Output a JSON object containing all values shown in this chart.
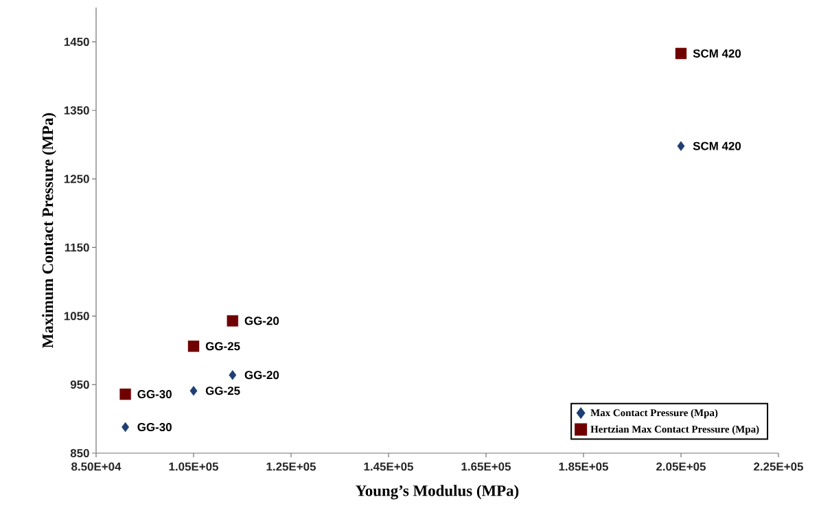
{
  "chart_data": {
    "type": "scatter",
    "xlabel": "Young’s Modulus (MPa)",
    "ylabel": "Maximum Contact Pressure  (MPa)",
    "x": [
      91000,
      105000,
      113000,
      205000
    ],
    "series": [
      {
        "name": "Max Contact Pressure (Mpa)",
        "color": "#1f3f74",
        "marker": "diamond",
        "values": [
          888,
          941,
          964,
          1298
        ]
      },
      {
        "name": "Hertzian Max Contact Pressure (Mpa)",
        "color": "#700000",
        "marker": "square",
        "values": [
          936,
          1006,
          1043,
          1433
        ]
      }
    ],
    "annotations": [
      {
        "text": "GG-30",
        "x": 91000,
        "y": 888
      },
      {
        "text": "GG-25",
        "x": 105000,
        "y": 941
      },
      {
        "text": "GG-20",
        "x": 113000,
        "y": 964
      },
      {
        "text": "SCM 420",
        "x": 205000,
        "y": 1298
      },
      {
        "text": "GG-30",
        "x": 91000,
        "y": 936
      },
      {
        "text": "GG-25",
        "x": 105000,
        "y": 1006
      },
      {
        "text": "GG-20",
        "x": 113000,
        "y": 1043
      },
      {
        "text": "SCM 420",
        "x": 205000,
        "y": 1433
      }
    ],
    "xlim": [
      85000,
      225000
    ],
    "ylim": [
      850,
      1500
    ],
    "xticks": [
      {
        "value": 85000,
        "label": "8.50E+04"
      },
      {
        "value": 105000,
        "label": "1.05E+05"
      },
      {
        "value": 125000,
        "label": "1.25E+05"
      },
      {
        "value": 145000,
        "label": "1.45E+05"
      },
      {
        "value": 165000,
        "label": "1.65E+05"
      },
      {
        "value": 185000,
        "label": "1.85E+05"
      },
      {
        "value": 205000,
        "label": "2.05E+05"
      },
      {
        "value": 225000,
        "label": "2.25E+05"
      }
    ],
    "yticks": [
      850,
      950,
      1050,
      1150,
      1250,
      1350,
      1450
    ],
    "legend": "bottom right",
    "grid": false
  }
}
